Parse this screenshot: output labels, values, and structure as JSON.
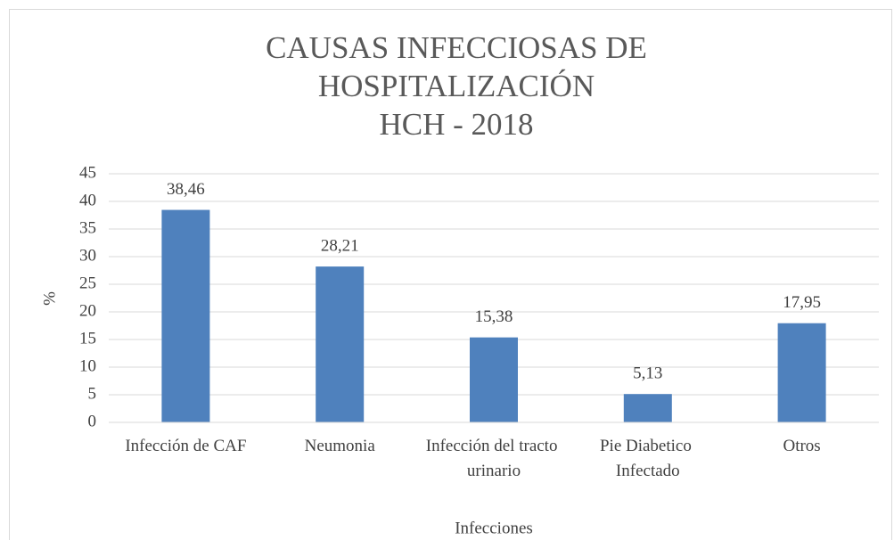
{
  "chart_data": {
    "type": "bar",
    "title": [
      "CAUSAS INFECCIOSAS DE",
      "HOSPITALIZACIÓN",
      "HCH - 2018"
    ],
    "x_label": "Infecciones",
    "y_label": "%",
    "categories": [
      "Infección de CAF",
      "Neumonia",
      "Infección del tracto urinario",
      "Pie Diabetico Infectado",
      "Otros"
    ],
    "values": [
      38.46,
      28.21,
      15.38,
      5.13,
      17.95
    ],
    "value_labels": [
      "38,46",
      "28,21",
      "15,38",
      "5,13",
      "17,95"
    ],
    "color": "#4f81bd",
    "ylim": [
      0,
      45
    ],
    "yticks": [
      0,
      5,
      10,
      15,
      20,
      25,
      30,
      35,
      40,
      45
    ],
    "grid": true
  }
}
